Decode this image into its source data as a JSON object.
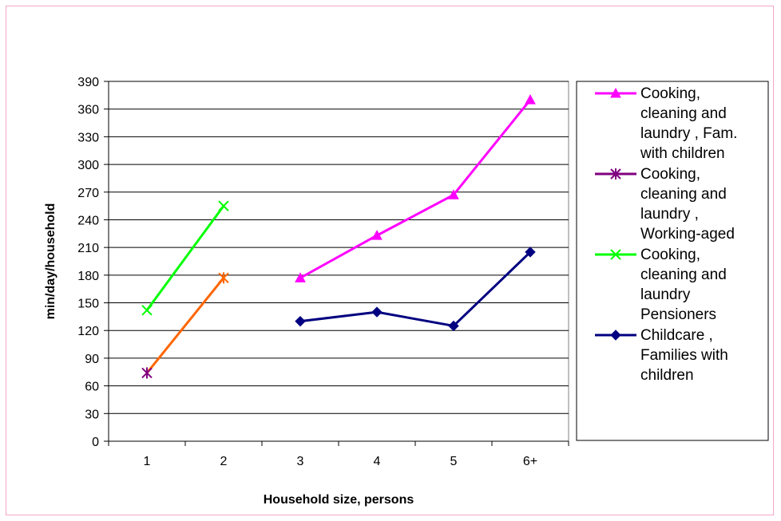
{
  "chart_data": {
    "type": "line",
    "categories": [
      "1",
      "2",
      "3",
      "4",
      "5",
      "6+"
    ],
    "xlabel": "Household size, persons",
    "ylabel": "min/day/household",
    "ylim": [
      0,
      390
    ],
    "yticks": [
      0,
      30,
      60,
      90,
      120,
      150,
      180,
      210,
      240,
      270,
      300,
      330,
      360,
      390
    ],
    "grid": "horizontal",
    "legend_position": "right",
    "series": [
      {
        "name_lines": [
          "Cooking,",
          "cleaning and",
          "laundry , Fam.",
          "with children"
        ],
        "values": [
          null,
          null,
          177,
          223,
          267,
          370
        ],
        "color": "#ff00ff",
        "marker": "triangle"
      },
      {
        "name_lines": [
          "Cooking,",
          "cleaning and",
          "laundry ,",
          "Working-aged"
        ],
        "values": [
          74,
          177,
          null,
          null,
          null,
          null
        ],
        "color": "#800080",
        "line_color": "#ff6600",
        "marker": "star"
      },
      {
        "name_lines": [
          "Cooking,",
          "cleaning and",
          "laundry",
          "Pensioners"
        ],
        "values": [
          142,
          255,
          null,
          null,
          null,
          null
        ],
        "color": "#00ff00",
        "marker": "x"
      },
      {
        "name_lines": [
          "Childcare ,",
          "Families with",
          "children"
        ],
        "values": [
          null,
          null,
          130,
          140,
          125,
          205
        ],
        "color": "#000080",
        "marker": "diamond"
      }
    ]
  }
}
